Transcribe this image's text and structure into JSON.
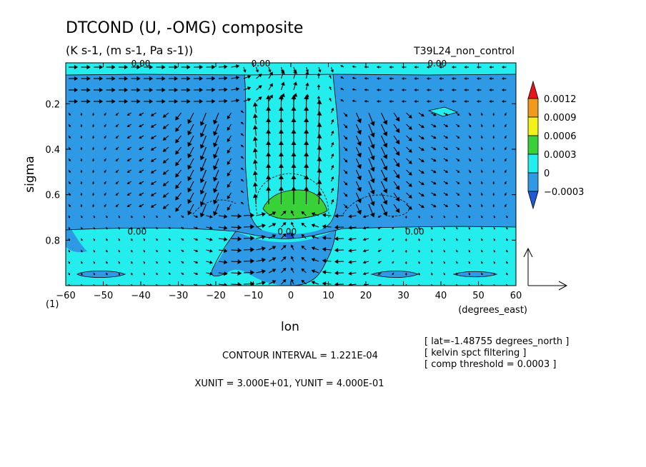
{
  "chart_data": {
    "type": "heatmap",
    "title": "DTCOND (U, -OMG) composite",
    "subtitle": "(K s-1, (m s-1, Pa s-1))",
    "run_label": "T39L24_non_control",
    "xlabel": "lon",
    "x_units": "(degrees_east)",
    "ylabel": "sigma",
    "y_axis_note": "(1)",
    "xlim": [
      -60,
      60
    ],
    "ylim": [
      1,
      0.02
    ],
    "x_ticks": [
      -60,
      -50,
      -40,
      -30,
      -20,
      -10,
      0,
      10,
      20,
      30,
      40,
      50,
      60
    ],
    "y_ticks": [
      0.2,
      0.4,
      0.6,
      0.8
    ],
    "colorbar": {
      "labels": [
        "0.0012",
        "0.0009",
        "0.0006",
        "0.0003",
        "0",
        "-0.0003"
      ],
      "colors": [
        "#e8161b",
        "#f19a1e",
        "#f3f319",
        "#38d238",
        "#24eded",
        "#2e9ae6",
        "#1e5ad6"
      ]
    },
    "contour_labels": [
      {
        "text": "0.00",
        "lon": -40,
        "sigma": 0.02
      },
      {
        "text": "0.00",
        "lon": -8,
        "sigma": 0.02
      },
      {
        "text": "0.00",
        "lon": 39,
        "sigma": 0.02
      },
      {
        "text": "0.00",
        "lon": -41,
        "sigma": 0.76
      },
      {
        "text": "0.00",
        "lon": -1,
        "sigma": 0.76
      },
      {
        "text": "0.00",
        "lon": 33,
        "sigma": 0.76
      }
    ],
    "annotations": {
      "contour_interval": "CONTOUR INTERVAL = 1.221E-04",
      "units": "XUNIT = 3.000E+01, YUNIT = 4.000E-01",
      "info": [
        "[ lat=-1.48755 degrees_north ]",
        "[ kelvin spct filtering ]",
        "[ comp threshold = 0.0003 ]"
      ]
    },
    "vector_scale": {
      "u": 30,
      "omega": 0.4
    }
  }
}
